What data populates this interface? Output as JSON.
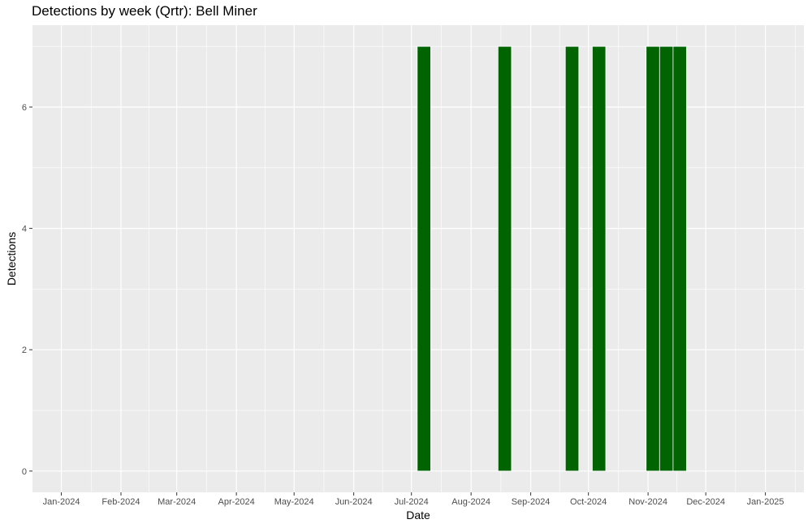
{
  "chart_data": {
    "type": "bar",
    "title": "Detections by week (Qrtr): Bell Miner",
    "xlabel": "Date",
    "ylabel": "Detections",
    "xlim": [
      "2023-12-17",
      "2025-01-21"
    ],
    "ylim": [
      -0.35,
      7.35
    ],
    "x_ticks": [
      {
        "date": "2024-01-01",
        "label": "Jan-2024"
      },
      {
        "date": "2024-02-01",
        "label": "Feb-2024"
      },
      {
        "date": "2024-03-01",
        "label": "Mar-2024"
      },
      {
        "date": "2024-04-01",
        "label": "Apr-2024"
      },
      {
        "date": "2024-05-01",
        "label": "May-2024"
      },
      {
        "date": "2024-06-01",
        "label": "Jun-2024"
      },
      {
        "date": "2024-07-01",
        "label": "Jul-2024"
      },
      {
        "date": "2024-08-01",
        "label": "Aug-2024"
      },
      {
        "date": "2024-09-01",
        "label": "Sep-2024"
      },
      {
        "date": "2024-10-01",
        "label": "Oct-2024"
      },
      {
        "date": "2024-11-01",
        "label": "Nov-2024"
      },
      {
        "date": "2024-12-01",
        "label": "Dec-2024"
      },
      {
        "date": "2025-01-01",
        "label": "Jan-2025"
      }
    ],
    "y_ticks": [
      0,
      2,
      4,
      6
    ],
    "bars": [
      {
        "week_start": "2024-07-04",
        "week_end": "2024-07-10",
        "value": 7
      },
      {
        "week_start": "2024-08-15",
        "week_end": "2024-08-21",
        "value": 7
      },
      {
        "week_start": "2024-09-19",
        "week_end": "2024-09-25",
        "value": 7
      },
      {
        "week_start": "2024-10-03",
        "week_end": "2024-10-09",
        "value": 7
      },
      {
        "week_start": "2024-10-31",
        "week_end": "2024-11-06",
        "value": 7
      },
      {
        "week_start": "2024-11-07",
        "week_end": "2024-11-13",
        "value": 7
      },
      {
        "week_start": "2024-11-14",
        "week_end": "2024-11-20",
        "value": 7
      }
    ],
    "bar_color": "#006400",
    "panel_color": "#ebebeb",
    "grid_color": "#ffffff",
    "grid": true,
    "legend": "none"
  }
}
